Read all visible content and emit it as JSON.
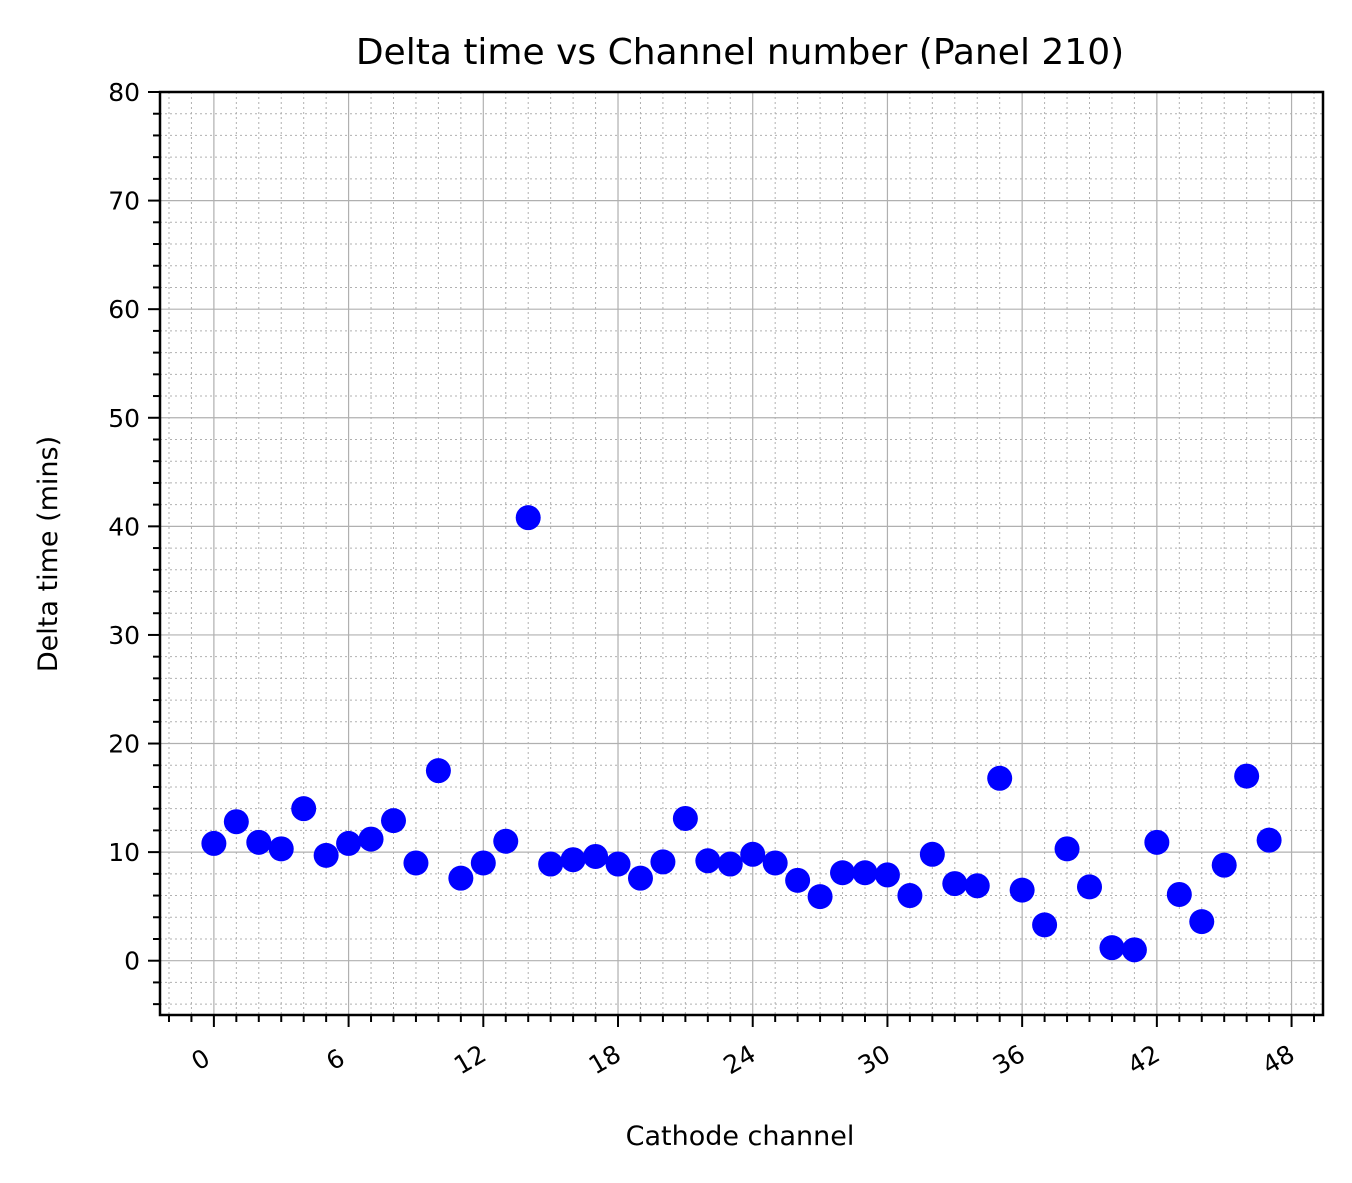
{
  "chart_data": {
    "type": "scatter",
    "title": "Delta time vs Channel number (Panel 210)",
    "xlabel": "Cathode channel",
    "ylabel": "Delta time (mins)",
    "xlim": [
      -2.4,
      49.4
    ],
    "ylim": [
      -5,
      80
    ],
    "xticks": [
      0,
      6,
      12,
      18,
      24,
      30,
      36,
      42,
      48
    ],
    "yticks": [
      0,
      10,
      20,
      30,
      40,
      50,
      60,
      70,
      80
    ],
    "x_minor_step": 1,
    "y_minor_step": 2,
    "grid": true,
    "marker_color": "#0000ff",
    "series": [
      {
        "x": [
          0,
          1,
          2,
          3,
          4,
          5,
          6,
          7,
          8,
          9,
          10,
          11,
          12,
          13,
          14,
          15,
          16,
          17,
          18,
          19,
          20,
          21,
          22,
          23,
          24,
          25,
          26,
          27,
          28,
          29,
          30,
          31,
          32,
          33,
          34,
          35,
          36,
          37,
          38,
          39,
          40,
          41,
          42,
          43,
          44,
          45,
          46,
          47
        ],
        "y": [
          10.8,
          12.8,
          10.9,
          10.3,
          14.0,
          9.7,
          10.8,
          11.2,
          12.9,
          9.0,
          17.5,
          7.6,
          9.0,
          11.0,
          40.8,
          8.9,
          9.3,
          9.6,
          8.9,
          7.6,
          9.1,
          13.1,
          9.2,
          8.9,
          9.8,
          9.0,
          7.4,
          5.9,
          8.1,
          8.1,
          7.9,
          6.0,
          9.8,
          7.1,
          6.9,
          16.8,
          6.5,
          3.3,
          10.3,
          6.8,
          1.2,
          1.0,
          10.9,
          6.1,
          3.6,
          8.8,
          17.0,
          11.1
        ]
      }
    ]
  }
}
